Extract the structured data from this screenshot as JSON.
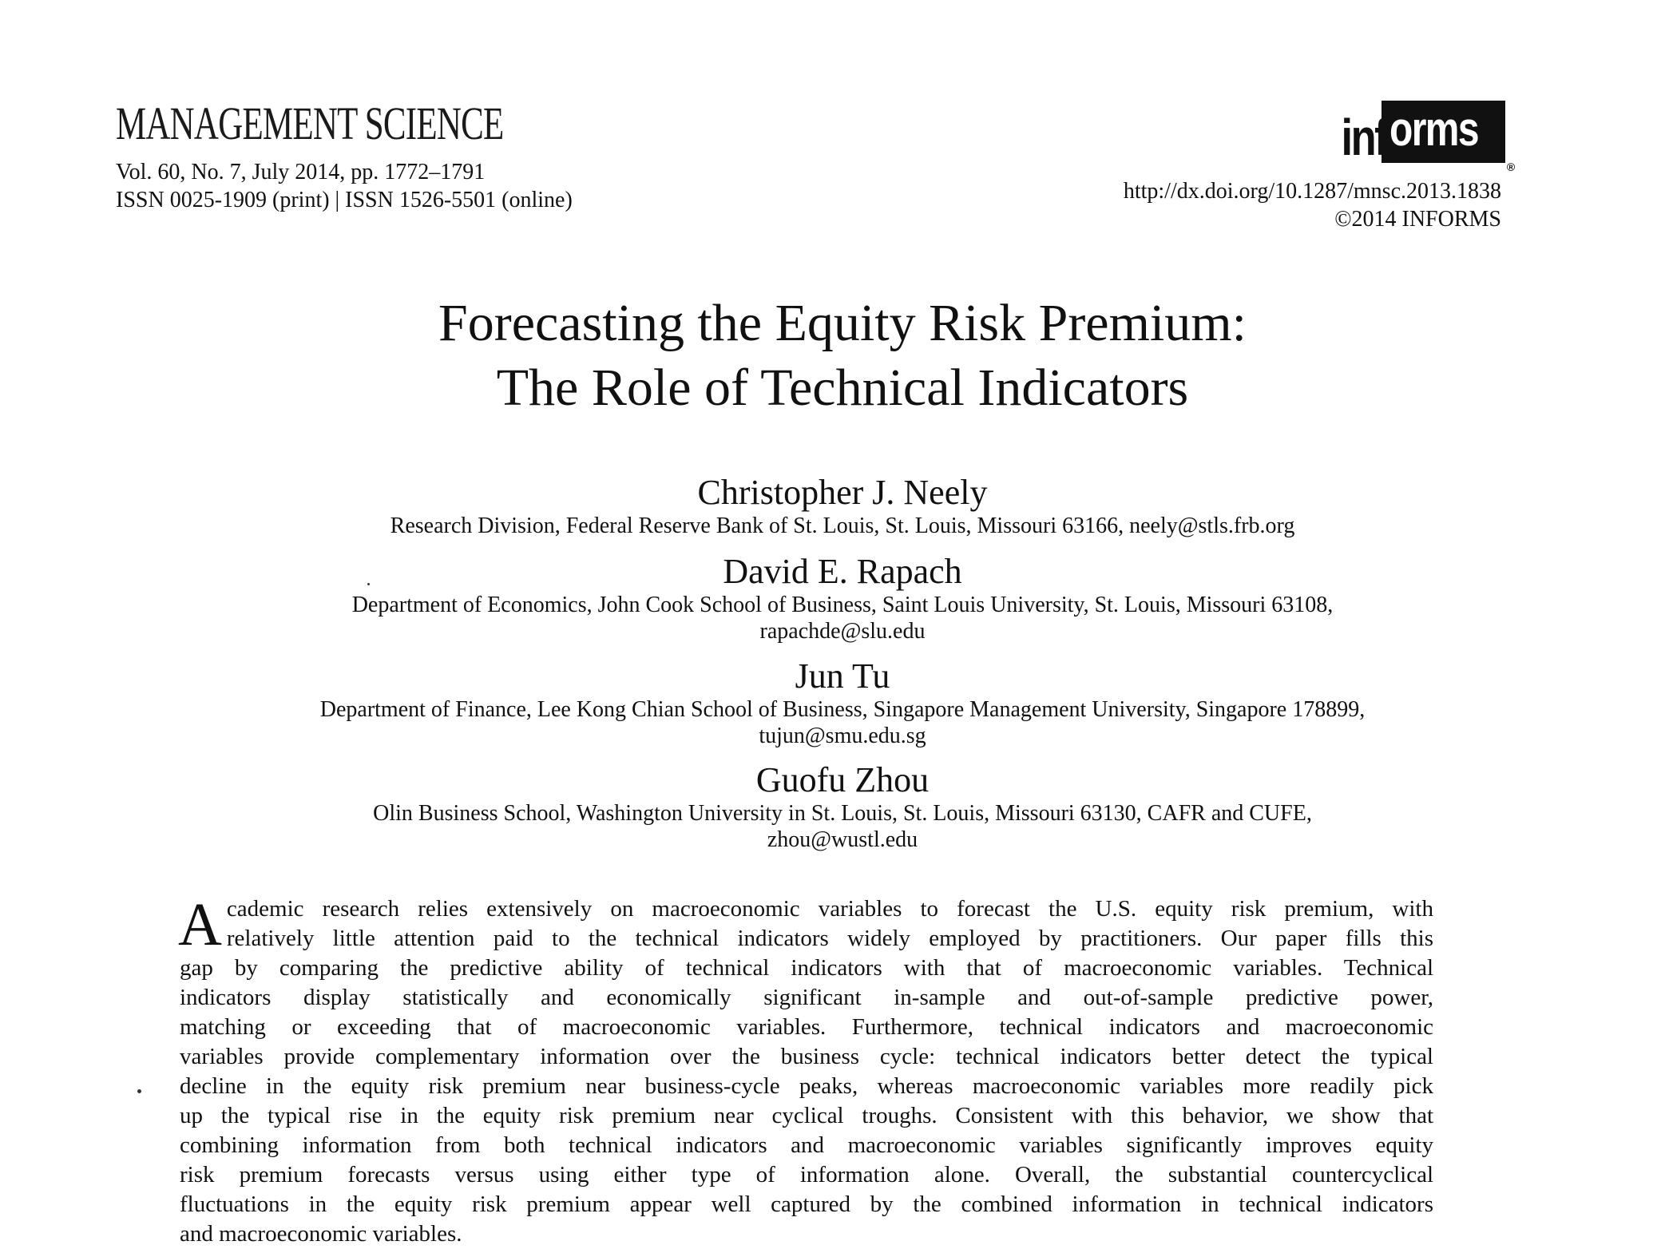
{
  "header": {
    "journal": "MANAGEMENT SCIENCE",
    "volume_line": "Vol. 60, No. 7, July 2014, pp. 1772–1791",
    "issn_line": "ISSN 0025-1909 (print) | ISSN 1526-5501 (online)",
    "logo_left": "inf",
    "logo_right": "orms",
    "logo_reg": "®",
    "doi": "http://dx.doi.org/10.1287/mnsc.2013.1838",
    "copyright": "©2014 INFORMS"
  },
  "title": {
    "line1": "Forecasting the Equity Risk Premium:",
    "line2": "The Role of Technical Indicators"
  },
  "authors": [
    {
      "name": "Christopher J. Neely",
      "affiliation_lines": [
        "Research Division, Federal Reserve Bank of St. Louis, St. Louis, Missouri 63166, neely@stls.frb.org"
      ]
    },
    {
      "name": "David E. Rapach",
      "affiliation_lines": [
        "Department of Economics, John Cook School of Business, Saint Louis University, St. Louis, Missouri 63108,",
        "rapachde@slu.edu"
      ]
    },
    {
      "name": "Jun Tu",
      "affiliation_lines": [
        "Department of Finance, Lee Kong Chian School of Business, Singapore Management University, Singapore 178899,",
        "tujun@smu.edu.sg"
      ]
    },
    {
      "name": "Guofu Zhou",
      "affiliation_lines": [
        "Olin Business School, Washington University in St. Louis, St. Louis, Missouri 63130, CAFR and CUFE,",
        "zhou@wustl.edu"
      ]
    }
  ],
  "abstract": {
    "dropcap": "A",
    "lines": [
      "cademic research relies extensively on macroeconomic variables to forecast the U.S. equity risk premium, with",
      "relatively little attention paid to the technical indicators widely employed by practitioners. Our paper fills this",
      "gap by comparing the predictive ability of technical indicators with that of macroeconomic variables. Technical",
      "indicators display statistically and economically significant in-sample and out-of-sample predictive power,",
      "matching or exceeding that of macroeconomic variables. Furthermore, technical indicators and macroeconomic",
      "variables provide complementary information over the business cycle: technical indicators better detect the typical",
      "decline in the equity risk premium near business-cycle peaks, whereas macroeconomic variables more readily pick",
      "up the typical rise in the equity risk premium near cyclical troughs. Consistent with this behavior, we show that",
      "combining information from both technical indicators and macroeconomic variables significantly improves equity",
      "risk premium forecasts versus using either type of information alone. Overall, the substantial countercyclical",
      "fluctuations in the equity risk premium appear well captured by the combined information in technical indicators",
      "and macroeconomic variables."
    ]
  }
}
